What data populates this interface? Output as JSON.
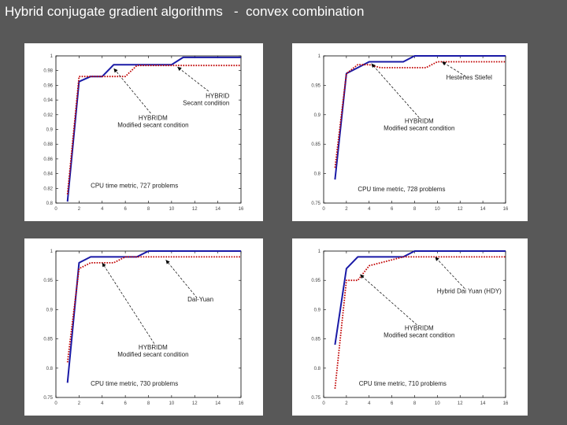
{
  "slide": {
    "title": "Hybrid conjugate gradient algorithms   -  convex combination"
  },
  "colors": {
    "background": "#585858",
    "panel": "#ffffff",
    "solid_series": "#1a1aa6",
    "dotted_series": "#c00000"
  },
  "chart_data": [
    {
      "type": "line",
      "xlim": [
        0,
        16
      ],
      "ylim": [
        0.8,
        1.0
      ],
      "x_ticks": [
        0,
        2,
        4,
        6,
        8,
        10,
        12,
        14,
        16
      ],
      "y_ticks": [
        0.8,
        0.82,
        0.84,
        0.86,
        0.88,
        0.9,
        0.92,
        0.94,
        0.96,
        0.98,
        1
      ],
      "x_tick_labels": [
        "0",
        "2",
        "4",
        "6",
        "8",
        "10",
        "12",
        "14",
        "16"
      ],
      "y_tick_labels": [
        "0.8",
        "0.82",
        "0.84",
        "0.86",
        "0.88",
        "0.9",
        "0.92",
        "0.94",
        "0.96",
        "0.98",
        "1"
      ],
      "series": [
        {
          "style": "solid",
          "x": [
            1,
            2,
            3,
            4,
            5,
            6,
            7,
            8,
            9,
            10,
            11,
            16
          ],
          "y": [
            0.802,
            0.965,
            0.972,
            0.972,
            0.988,
            0.988,
            0.988,
            0.988,
            0.988,
            0.988,
            0.998,
            0.998
          ]
        },
        {
          "style": "dotted",
          "x": [
            1,
            2,
            3,
            4,
            5,
            6,
            7,
            8,
            9,
            10,
            11,
            16
          ],
          "y": [
            0.812,
            0.972,
            0.972,
            0.972,
            0.972,
            0.972,
            0.987,
            0.987,
            0.987,
            0.987,
            0.987,
            0.987
          ]
        }
      ],
      "annotations": [
        {
          "lines": [
            "HYBRID",
            "Secant condition"
          ],
          "align": "end",
          "at": [
            15,
            0.943
          ],
          "arrow_from": [
            13.2,
            0.952
          ],
          "arrow_to": [
            10.5,
            0.985
          ]
        },
        {
          "lines": [
            "HYBRIDM",
            "Modified secant condition"
          ],
          "align": "middle",
          "at": [
            8.4,
            0.913
          ],
          "arrow_from": [
            8.2,
            0.922
          ],
          "arrow_to": [
            5,
            0.983
          ]
        },
        {
          "lines": [
            "CPU time metric, 727 problems"
          ],
          "align": "start",
          "at": [
            3,
            0.821
          ]
        }
      ]
    },
    {
      "type": "line",
      "xlim": [
        0,
        16
      ],
      "ylim": [
        0.75,
        1.0
      ],
      "x_ticks": [
        0,
        2,
        4,
        6,
        8,
        10,
        12,
        14,
        16
      ],
      "y_ticks": [
        0.75,
        0.8,
        0.85,
        0.9,
        0.95,
        1
      ],
      "x_tick_labels": [
        "0",
        "2",
        "4",
        "6",
        "8",
        "10",
        "12",
        "14",
        "16"
      ],
      "y_tick_labels": [
        "0.75",
        "0.8",
        "0.85",
        "0.9",
        "0.95",
        "1"
      ],
      "series": [
        {
          "style": "solid",
          "x": [
            1,
            2,
            3,
            4,
            5,
            6,
            7,
            8,
            9,
            16
          ],
          "y": [
            0.79,
            0.97,
            0.98,
            0.99,
            0.99,
            0.99,
            0.99,
            1.0,
            1.0,
            1.0
          ]
        },
        {
          "style": "dotted",
          "x": [
            1,
            2,
            3,
            4,
            5,
            6,
            7,
            8,
            9,
            10,
            16
          ],
          "y": [
            0.81,
            0.97,
            0.985,
            0.985,
            0.98,
            0.98,
            0.98,
            0.98,
            0.98,
            0.99,
            0.99
          ]
        }
      ],
      "annotations": [
        {
          "lines": [
            "Hestenes Stiefel"
          ],
          "align": "middle",
          "at": [
            12.8,
            0.96
          ],
          "arrow_from": [
            12.5,
            0.965
          ],
          "arrow_to": [
            10.4,
            0.99
          ]
        },
        {
          "lines": [
            "HYBRIDM",
            "Modified secant condition"
          ],
          "align": "middle",
          "at": [
            8.4,
            0.886
          ],
          "arrow_from": [
            8.4,
            0.895
          ],
          "arrow_to": [
            4.2,
            0.987
          ]
        },
        {
          "lines": [
            "CPU time metric, 728 problems"
          ],
          "align": "start",
          "at": [
            3,
            0.77
          ]
        }
      ]
    },
    {
      "type": "line",
      "xlim": [
        0,
        16
      ],
      "ylim": [
        0.75,
        1.0
      ],
      "x_ticks": [
        0,
        2,
        4,
        6,
        8,
        10,
        12,
        14,
        16
      ],
      "y_ticks": [
        0.75,
        0.8,
        0.85,
        0.9,
        0.95,
        1
      ],
      "x_tick_labels": [
        "0",
        "2",
        "4",
        "6",
        "8",
        "10",
        "12",
        "14",
        "16"
      ],
      "y_tick_labels": [
        "0.75",
        "0.8",
        "0.85",
        "0.9",
        "0.95",
        "1"
      ],
      "series": [
        {
          "style": "solid",
          "x": [
            1,
            2,
            3,
            4,
            5,
            6,
            7,
            8,
            16
          ],
          "y": [
            0.775,
            0.98,
            0.99,
            0.99,
            0.99,
            0.99,
            0.99,
            1.0,
            1.0
          ]
        },
        {
          "style": "dotted",
          "x": [
            1,
            2,
            3,
            4,
            5,
            6,
            7,
            8,
            16
          ],
          "y": [
            0.81,
            0.97,
            0.98,
            0.98,
            0.98,
            0.99,
            0.99,
            0.99,
            0.99
          ]
        }
      ],
      "annotations": [
        {
          "lines": [
            "Dai-Yuan"
          ],
          "align": "middle",
          "at": [
            12.5,
            0.914
          ],
          "arrow_from": [
            12.2,
            0.92
          ],
          "arrow_to": [
            9.5,
            0.985
          ]
        },
        {
          "lines": [
            "HYBRIDM",
            "Modified secant condition"
          ],
          "align": "middle",
          "at": [
            8.4,
            0.832
          ],
          "arrow_from": [
            8.5,
            0.842
          ],
          "arrow_to": [
            4,
            0.98
          ]
        },
        {
          "lines": [
            "CPU time metric, 730 problems"
          ],
          "align": "start",
          "at": [
            3,
            0.77
          ]
        }
      ]
    },
    {
      "type": "line",
      "xlim": [
        0,
        16
      ],
      "ylim": [
        0.75,
        1.0
      ],
      "x_ticks": [
        0,
        2,
        4,
        6,
        8,
        10,
        12,
        14,
        16
      ],
      "y_ticks": [
        0.75,
        0.8,
        0.85,
        0.9,
        0.95,
        1
      ],
      "x_tick_labels": [
        "0",
        "2",
        "4",
        "6",
        "8",
        "10",
        "12",
        "14",
        "16"
      ],
      "y_tick_labels": [
        "0.75",
        "0.8",
        "0.85",
        "0.9",
        "0.95",
        "1"
      ],
      "series": [
        {
          "style": "solid",
          "x": [
            1,
            2,
            3,
            4,
            5,
            6,
            7,
            8,
            16
          ],
          "y": [
            0.84,
            0.97,
            0.99,
            0.99,
            0.99,
            0.99,
            0.99,
            1.0,
            1.0
          ]
        },
        {
          "style": "dotted",
          "x": [
            1,
            2,
            3,
            4,
            5,
            6,
            7,
            8,
            16
          ],
          "y": [
            0.765,
            0.95,
            0.95,
            0.975,
            0.98,
            0.985,
            0.99,
            0.99,
            0.99
          ]
        }
      ],
      "annotations": [
        {
          "lines": [
            "Hybrid Dai Yuan (HDY)"
          ],
          "align": "middle",
          "at": [
            12.8,
            0.928
          ],
          "arrow_from": [
            12.4,
            0.936
          ],
          "arrow_to": [
            9.8,
            0.99
          ]
        },
        {
          "lines": [
            "HYBRIDM",
            "Modified secant condition"
          ],
          "align": "middle",
          "at": [
            8.4,
            0.865
          ],
          "arrow_from": [
            8.2,
            0.874
          ],
          "arrow_to": [
            3.2,
            0.96
          ]
        },
        {
          "lines": [
            "CPU time metric, 710 problems"
          ],
          "align": "start",
          "at": [
            3.1,
            0.77
          ]
        }
      ]
    }
  ]
}
